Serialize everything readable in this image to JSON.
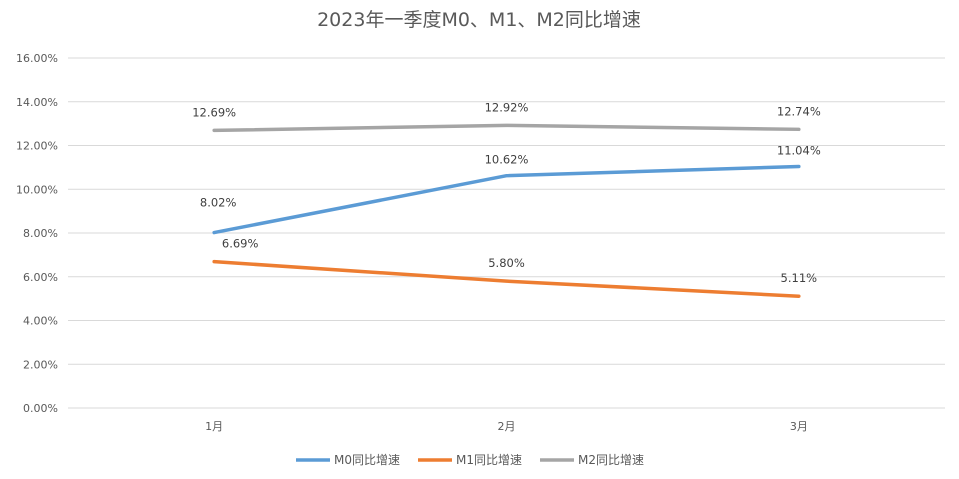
{
  "chart_data": {
    "type": "line",
    "title": "2023年一季度M0、M1、M2同比增速",
    "categories": [
      "1月",
      "2月",
      "3月"
    ],
    "series": [
      {
        "name": "M0同比增速",
        "values": [
          8.02,
          10.62,
          11.04
        ],
        "labels": [
          "8.02%",
          "10.62%",
          "11.04%"
        ],
        "color": "#5B9BD5"
      },
      {
        "name": "M1同比增速",
        "values": [
          6.69,
          5.8,
          5.11
        ],
        "labels": [
          "6.69%",
          "5.80%",
          "5.11%"
        ],
        "color": "#ED7D31"
      },
      {
        "name": "M2同比增速",
        "values": [
          12.69,
          12.92,
          12.74
        ],
        "labels": [
          "12.69%",
          "12.92%",
          "12.74%"
        ],
        "color": "#A5A5A5"
      }
    ],
    "ylim": [
      0,
      16
    ],
    "yticks": [
      "0.00%",
      "2.00%",
      "4.00%",
      "6.00%",
      "8.00%",
      "10.00%",
      "12.00%",
      "14.00%",
      "16.00%"
    ],
    "grid": true,
    "legend": "bottom",
    "xlabel": "",
    "ylabel": ""
  }
}
